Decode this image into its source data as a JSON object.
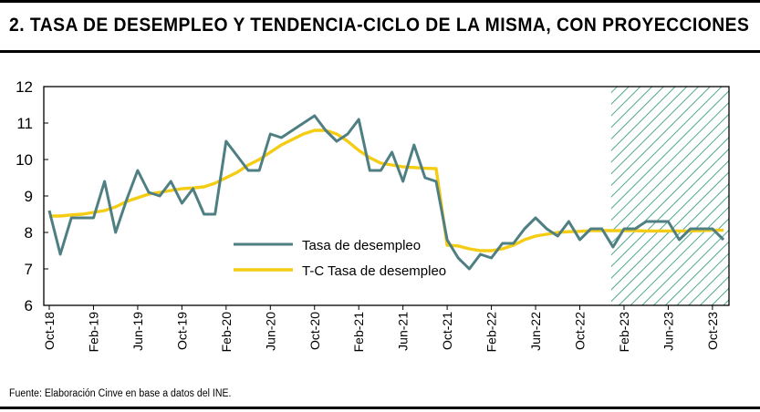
{
  "title": "2. TASA DE DESEMPLEO Y TENDENCIA-CICLO DE LA MISMA, CON PROYECCIONES",
  "source": "Fuente: Elaboración Cinve en base a datos del INE.",
  "colors": {
    "unemployment": "#4f7f83",
    "trend": "#f5cc14",
    "projection_hatch": "#4fa88f"
  },
  "chart_data": {
    "type": "line",
    "ylim": [
      6,
      12
    ],
    "yticks": [
      "6",
      "7",
      "8",
      "9",
      "10",
      "11",
      "12"
    ],
    "x_tick_labels": [
      "Oct-18",
      "Feb-19",
      "Jun-19",
      "Oct-19",
      "Feb-20",
      "Jun-20",
      "Oct-20",
      "Feb-21",
      "Jun-21",
      "Oct-21",
      "Feb-22",
      "Jun-22",
      "Oct-22",
      "Feb-23",
      "Jun-23",
      "Oct-23"
    ],
    "x_tick_months": [
      0,
      4,
      8,
      12,
      16,
      20,
      24,
      28,
      32,
      36,
      40,
      44,
      48,
      52,
      56,
      60
    ],
    "x_range": [
      0,
      61
    ],
    "projection_start_month": 51,
    "legend_position": "center",
    "grid": false,
    "series": [
      {
        "name": "Tasa de desempleo",
        "color": "#4f7f83",
        "values": [
          8.6,
          7.4,
          8.4,
          8.4,
          8.4,
          9.4,
          8.0,
          8.9,
          9.7,
          9.1,
          9.0,
          9.4,
          8.8,
          9.2,
          8.5,
          8.5,
          10.5,
          10.1,
          9.7,
          9.7,
          10.7,
          10.6,
          10.8,
          11.0,
          11.2,
          10.8,
          10.5,
          10.7,
          11.1,
          9.7,
          9.7,
          10.2,
          9.4,
          10.4,
          9.5,
          9.4,
          7.8,
          7.3,
          7.0,
          7.4,
          7.3,
          7.7,
          7.7,
          8.1,
          8.4,
          8.1,
          7.9,
          8.3,
          7.8,
          8.1,
          8.1,
          7.6,
          8.1,
          8.1,
          8.3,
          8.3,
          8.3,
          7.8,
          8.1,
          8.1,
          8.1,
          7.8
        ]
      },
      {
        "name": "T-C Tasa de desempleo",
        "color": "#f5cc14",
        "values": [
          8.45,
          8.45,
          8.48,
          8.5,
          8.55,
          8.6,
          8.7,
          8.85,
          8.95,
          9.05,
          9.1,
          9.15,
          9.2,
          9.22,
          9.25,
          9.35,
          9.5,
          9.65,
          9.85,
          10.0,
          10.2,
          10.4,
          10.55,
          10.7,
          10.8,
          10.8,
          10.7,
          10.5,
          10.25,
          10.05,
          9.9,
          9.85,
          9.8,
          9.78,
          9.76,
          9.75,
          7.65,
          7.63,
          7.55,
          7.5,
          7.5,
          7.55,
          7.65,
          7.8,
          7.9,
          7.95,
          8.0,
          8.02,
          8.03,
          8.05,
          8.05,
          8.05,
          8.05,
          8.05,
          8.04,
          8.04,
          8.04,
          8.04,
          8.04,
          8.05,
          8.06,
          8.06
        ]
      }
    ]
  }
}
